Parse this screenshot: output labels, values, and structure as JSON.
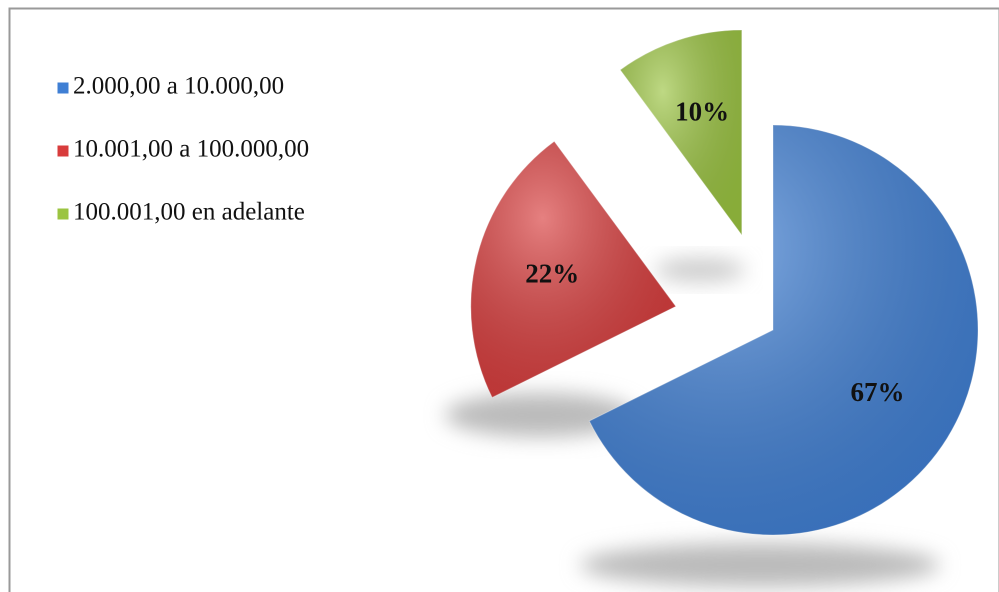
{
  "chart_data": {
    "type": "pie",
    "categories": [
      "2.000,00 a 10.000,00",
      "10.001,00 a 100.000,00",
      "100.001,00 en adelante"
    ],
    "values": [
      67,
      22,
      10
    ],
    "value_labels": [
      "67%",
      "22%",
      "10%"
    ],
    "colors": [
      "#3f7fd4",
      "#d83c3c",
      "#9bc441"
    ],
    "legend": "top-left"
  }
}
